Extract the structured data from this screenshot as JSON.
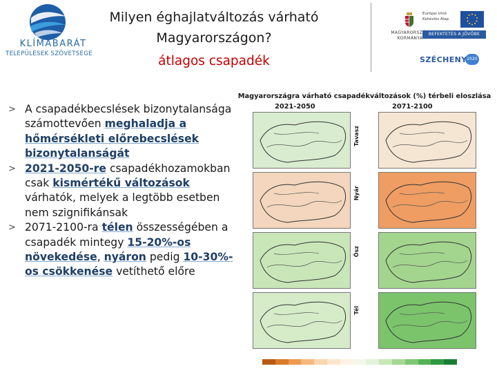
{
  "header": {
    "title_line1": "Milyen éghajlatváltozás várható",
    "title_line2": "Magyarországon?",
    "subtitle": "átlagos csapadék"
  },
  "logo_left": {
    "line1": "KLÍMABARÁT",
    "line2": "TELEPÜLÉSEK SZÖVETSÉGE"
  },
  "logo_right": {
    "government_text": "MAGYARORSZÁG KORMÁNYA",
    "eu_text_1": "Európai Unió",
    "eu_text_2": "Kohéziós Alap",
    "investment_banner": "BEFEKTETÉS A JÖVŐBE",
    "program_name": "SZÉCHENYI",
    "program_year": "2020"
  },
  "bullets": {
    "b1": {
      "text_1": "A csapadékbecslések bizonytalansága számottevően ",
      "hl_1": "meghaladja a hőmérsékleti előrebecslések bizonytalanságát"
    },
    "b2": {
      "hl_1": "2021-2050-re",
      "text_1": " csapadékhozamokban csak ",
      "hl_2": "kismértékű változások",
      "text_2": " várhatók, melyek a legtöbb esetben nem szignifikánsak"
    },
    "b3": {
      "text_1": "2071-2100-ra ",
      "hl_1": "télen",
      "text_2": " összességében a csapadék mintegy ",
      "hl_2": "15-20%-os növekedése",
      "text_3": ", ",
      "hl_3": "nyáron",
      "text_4": " pedig ",
      "hl_4": "10-30%-os csökkenése",
      "text_5": " vetíthető előre"
    },
    "marker": ">"
  },
  "figure": {
    "title": "Magyarországra várható csapadékváltozások (%) térbeli eloszlása",
    "period_left": "2021-2050",
    "period_right": "2071-2100",
    "seasons": [
      "Tavasz",
      "Nyár",
      "Ősz",
      "Tél"
    ],
    "season_colors": {
      "Tavasz": [
        "#d9ecd0",
        "#f5e6d3"
      ],
      "Nyár": [
        "#f3d6bd",
        "#ef9d62"
      ],
      "Ősz": [
        "#c9e6b9",
        "#a4d58f"
      ],
      "Tél": [
        "#d6ecc9",
        "#7bc46b"
      ]
    },
    "colorbar": [
      "#b85a14",
      "#d77b2b",
      "#ee9a50",
      "#f5b97d",
      "#f9d6ae",
      "#fbe6cc",
      "#fdf1e4",
      "#f3f7ec",
      "#e3f2d8",
      "#c8e8b8",
      "#a6d895",
      "#7fc774",
      "#55b356",
      "#2f9a41",
      "#1b7f33"
    ]
  }
}
